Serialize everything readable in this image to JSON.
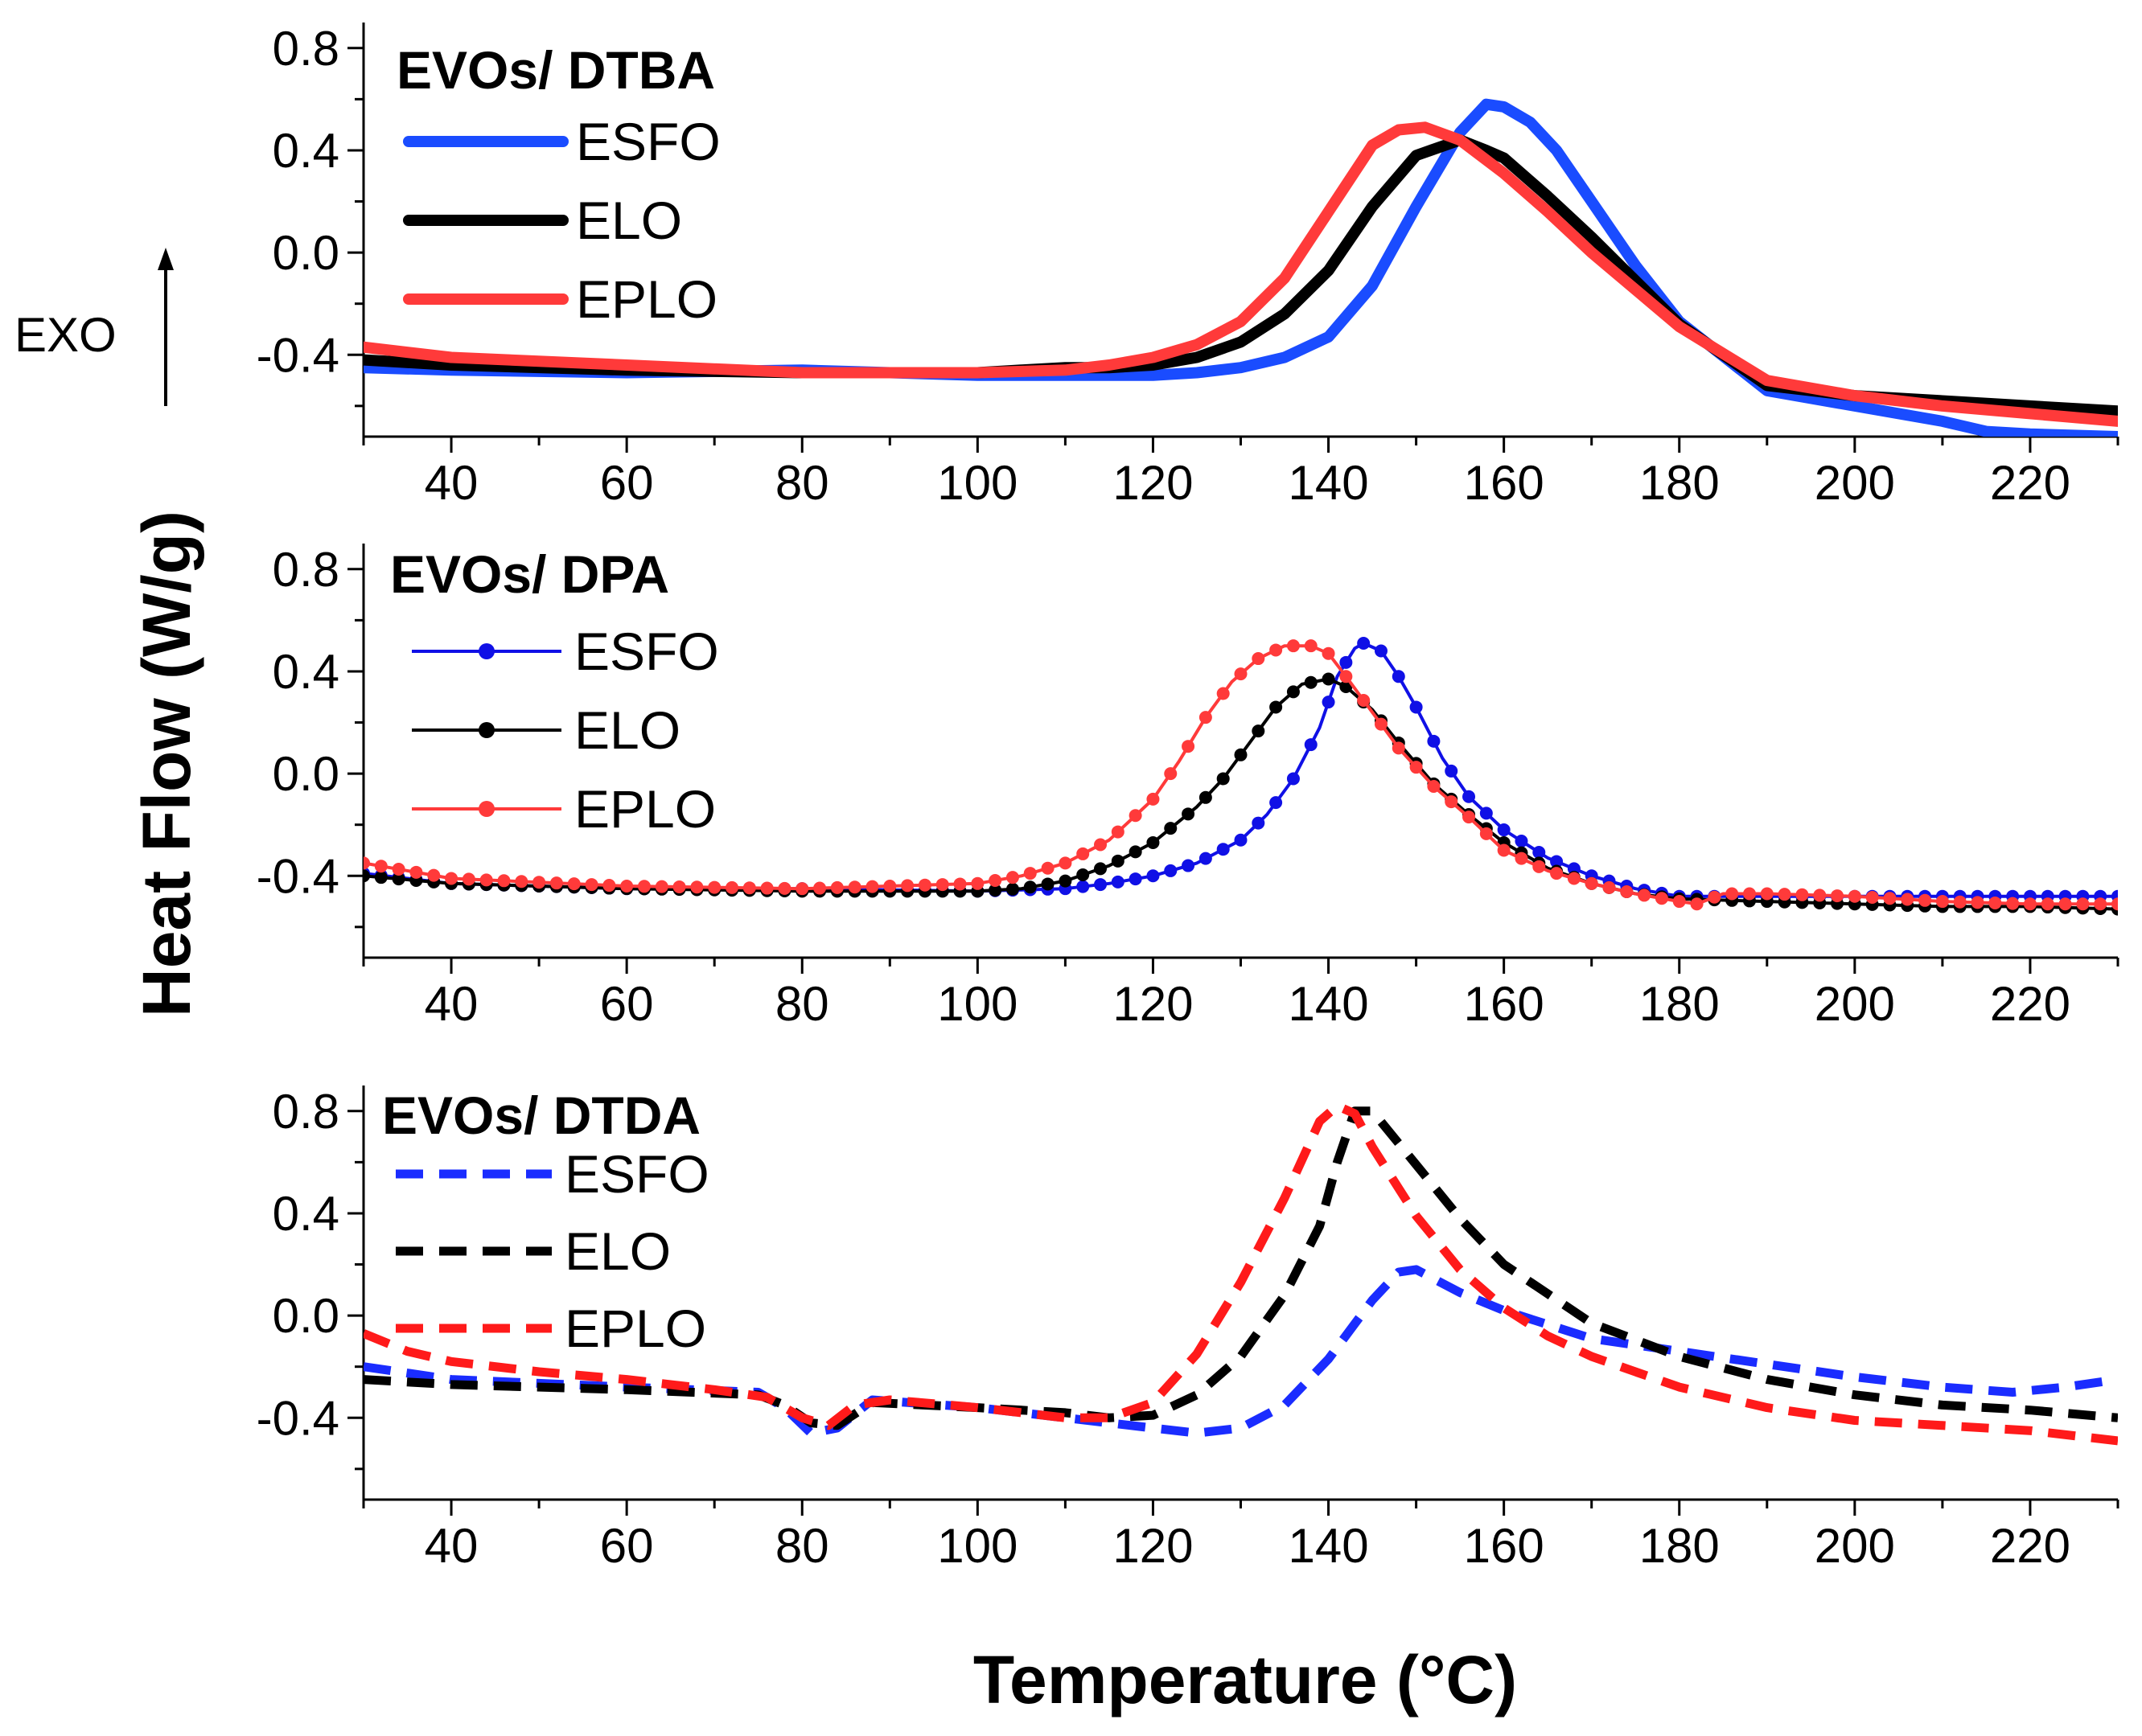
{
  "figure": {
    "ylabel": "Heat Flow (W/g)",
    "xlabel": "Temperature (°C)",
    "exo_label": "EXO"
  },
  "chart_data": [
    {
      "type": "line",
      "title": "EVOs/ DTBA",
      "line_style": "solid",
      "xlabel": "Temperature (°C)",
      "ylabel": "Heat Flow (W/g)",
      "xlim": [
        30,
        230
      ],
      "ylim": [
        -0.72,
        0.9
      ],
      "xticks": [
        40,
        60,
        80,
        100,
        120,
        140,
        160,
        180,
        200,
        220
      ],
      "yticks": [
        -0.4,
        0.0,
        0.4,
        0.8
      ],
      "xtick_labels": [
        "40",
        "60",
        "80",
        "100",
        "120",
        "140",
        "160",
        "180",
        "200",
        "220"
      ],
      "ytick_labels": [
        "-0.4",
        "0.0",
        "0.4",
        "0.8"
      ],
      "legend_position": "top-left",
      "series": [
        {
          "name": "ESFO",
          "color": "#1a4cff",
          "x": [
            30,
            40,
            60,
            80,
            90,
            100,
            110,
            120,
            125,
            130,
            135,
            140,
            145,
            150,
            155,
            158,
            160,
            163,
            166,
            170,
            175,
            180,
            190,
            200,
            210,
            215,
            220,
            230
          ],
          "y": [
            -0.45,
            -0.46,
            -0.47,
            -0.46,
            -0.47,
            -0.48,
            -0.48,
            -0.48,
            -0.47,
            -0.45,
            -0.41,
            -0.33,
            -0.13,
            0.18,
            0.47,
            0.58,
            0.57,
            0.51,
            0.4,
            0.2,
            -0.05,
            -0.27,
            -0.54,
            -0.6,
            -0.66,
            -0.7,
            -0.71,
            -0.72
          ]
        },
        {
          "name": "ELO",
          "color": "#000000",
          "x": [
            30,
            40,
            60,
            80,
            90,
            100,
            105,
            110,
            115,
            120,
            125,
            130,
            135,
            140,
            145,
            150,
            155,
            158,
            160,
            165,
            170,
            180,
            190,
            200,
            210,
            220,
            230
          ],
          "y": [
            -0.42,
            -0.44,
            -0.46,
            -0.47,
            -0.47,
            -0.47,
            -0.46,
            -0.45,
            -0.45,
            -0.44,
            -0.41,
            -0.35,
            -0.24,
            -0.07,
            0.18,
            0.38,
            0.44,
            0.4,
            0.37,
            0.22,
            0.06,
            -0.28,
            -0.52,
            -0.56,
            -0.58,
            -0.6,
            -0.62
          ]
        },
        {
          "name": "EPLO",
          "color": "#ff3a3a",
          "x": [
            30,
            40,
            60,
            80,
            90,
            100,
            110,
            115,
            120,
            125,
            130,
            135,
            140,
            145,
            148,
            151,
            155,
            160,
            165,
            170,
            180,
            190,
            200,
            210,
            220,
            230
          ],
          "y": [
            -0.37,
            -0.41,
            -0.44,
            -0.47,
            -0.47,
            -0.47,
            -0.46,
            -0.44,
            -0.41,
            -0.36,
            -0.27,
            -0.1,
            0.16,
            0.42,
            0.48,
            0.49,
            0.44,
            0.31,
            0.16,
            0.0,
            -0.29,
            -0.5,
            -0.56,
            -0.6,
            -0.63,
            -0.66
          ]
        }
      ]
    },
    {
      "type": "line",
      "title": "EVOs/ DPA",
      "line_style": "solid-with-dots",
      "xlabel": "Temperature (°C)",
      "ylabel": "Heat Flow (W/g)",
      "xlim": [
        30,
        230
      ],
      "ylim": [
        -0.72,
        0.9
      ],
      "xticks": [
        40,
        60,
        80,
        100,
        120,
        140,
        160,
        180,
        200,
        220
      ],
      "yticks": [
        -0.4,
        0.0,
        0.4,
        0.8
      ],
      "xtick_labels": [
        "40",
        "60",
        "80",
        "100",
        "120",
        "140",
        "160",
        "180",
        "200",
        "220"
      ],
      "ytick_labels": [
        "-0.4",
        "0.0",
        "0.4",
        "0.8"
      ],
      "legend_position": "top-left",
      "series": [
        {
          "name": "ESFO",
          "color": "#1010e6",
          "x": [
            30,
            40,
            60,
            80,
            100,
            110,
            115,
            120,
            125,
            130,
            133,
            136,
            139,
            141,
            143,
            144,
            146,
            148,
            150,
            153,
            156,
            160,
            165,
            170,
            175,
            180,
            190,
            200,
            210,
            220,
            230
          ],
          "y": [
            -0.39,
            -0.43,
            -0.45,
            -0.45,
            -0.46,
            -0.45,
            -0.43,
            -0.4,
            -0.35,
            -0.26,
            -0.16,
            -0.02,
            0.18,
            0.38,
            0.49,
            0.51,
            0.48,
            0.38,
            0.26,
            0.06,
            -0.09,
            -0.22,
            -0.33,
            -0.4,
            -0.45,
            -0.48,
            -0.48,
            -0.48,
            -0.48,
            -0.48,
            -0.48
          ]
        },
        {
          "name": "ELO",
          "color": "#000000",
          "x": [
            30,
            40,
            60,
            80,
            100,
            105,
            110,
            115,
            120,
            125,
            128,
            131,
            134,
            137,
            140,
            142,
            145,
            148,
            152,
            156,
            160,
            165,
            170,
            175,
            180,
            190,
            200,
            210,
            220,
            230
          ],
          "y": [
            -0.4,
            -0.43,
            -0.45,
            -0.46,
            -0.46,
            -0.45,
            -0.42,
            -0.36,
            -0.27,
            -0.13,
            -0.02,
            0.12,
            0.26,
            0.35,
            0.37,
            0.34,
            0.25,
            0.12,
            -0.04,
            -0.16,
            -0.27,
            -0.37,
            -0.43,
            -0.47,
            -0.49,
            -0.5,
            -0.51,
            -0.52,
            -0.52,
            -0.53
          ]
        },
        {
          "name": "EPLO",
          "color": "#ff3a3a",
          "x": [
            30,
            40,
            60,
            80,
            100,
            105,
            110,
            115,
            120,
            123,
            126,
            129,
            132,
            135,
            138,
            140,
            142,
            145,
            148,
            152,
            156,
            160,
            165,
            170,
            175,
            180,
            182,
            185,
            190,
            200,
            210,
            220,
            230
          ],
          "y": [
            -0.35,
            -0.41,
            -0.44,
            -0.45,
            -0.43,
            -0.4,
            -0.35,
            -0.26,
            -0.1,
            0.05,
            0.22,
            0.36,
            0.45,
            0.5,
            0.5,
            0.47,
            0.38,
            0.24,
            0.1,
            -0.05,
            -0.17,
            -0.3,
            -0.38,
            -0.43,
            -0.47,
            -0.5,
            -0.51,
            -0.47,
            -0.47,
            -0.48,
            -0.5,
            -0.51,
            -0.51
          ]
        }
      ]
    },
    {
      "type": "line",
      "title": "EVOs/ DTDA",
      "line_style": "dashed",
      "xlabel": "Temperature (°C)",
      "ylabel": "Heat Flow (W/g)",
      "xlim": [
        30,
        230
      ],
      "ylim": [
        -0.72,
        0.9
      ],
      "xticks": [
        40,
        60,
        80,
        100,
        120,
        140,
        160,
        180,
        200,
        220
      ],
      "yticks": [
        -0.4,
        0.0,
        0.4,
        0.8
      ],
      "xtick_labels": [
        "40",
        "60",
        "80",
        "100",
        "120",
        "140",
        "160",
        "180",
        "200",
        "220"
      ],
      "ytick_labels": [
        "-0.4",
        "0.0",
        "0.4",
        "0.8"
      ],
      "legend_position": "top-left",
      "series": [
        {
          "name": "ESFO",
          "color": "#1a2cff",
          "x": [
            30,
            40,
            60,
            75,
            78,
            81,
            84,
            88,
            100,
            110,
            120,
            125,
            130,
            135,
            140,
            145,
            148,
            150,
            155,
            160,
            170,
            180,
            190,
            200,
            210,
            218,
            224,
            230
          ],
          "y": [
            -0.2,
            -0.25,
            -0.28,
            -0.3,
            -0.36,
            -0.46,
            -0.44,
            -0.33,
            -0.36,
            -0.4,
            -0.44,
            -0.46,
            -0.44,
            -0.35,
            -0.17,
            0.06,
            0.17,
            0.18,
            0.09,
            0.02,
            -0.09,
            -0.14,
            -0.19,
            -0.24,
            -0.28,
            -0.3,
            -0.28,
            -0.25
          ]
        },
        {
          "name": "ELO",
          "color": "#000000",
          "x": [
            30,
            40,
            60,
            75,
            78,
            81,
            84,
            88,
            100,
            110,
            115,
            120,
            125,
            130,
            135,
            139,
            141,
            143,
            145,
            150,
            155,
            160,
            170,
            180,
            190,
            200,
            210,
            220,
            230
          ],
          "y": [
            -0.25,
            -0.27,
            -0.29,
            -0.31,
            -0.35,
            -0.42,
            -0.43,
            -0.34,
            -0.36,
            -0.38,
            -0.4,
            -0.39,
            -0.31,
            -0.16,
            0.08,
            0.35,
            0.6,
            0.8,
            0.8,
            0.59,
            0.38,
            0.2,
            -0.03,
            -0.16,
            -0.25,
            -0.31,
            -0.35,
            -0.37,
            -0.4
          ]
        },
        {
          "name": "EPLO",
          "color": "#ff1a1a",
          "x": [
            30,
            35,
            40,
            50,
            60,
            70,
            76,
            80,
            83,
            86,
            90,
            100,
            110,
            115,
            120,
            125,
            130,
            135,
            139,
            141,
            143,
            145,
            150,
            155,
            160,
            165,
            170,
            180,
            190,
            200,
            210,
            220,
            230
          ],
          "y": [
            -0.07,
            -0.14,
            -0.18,
            -0.22,
            -0.25,
            -0.29,
            -0.32,
            -0.4,
            -0.43,
            -0.35,
            -0.33,
            -0.36,
            -0.4,
            -0.4,
            -0.34,
            -0.15,
            0.13,
            0.46,
            0.76,
            0.82,
            0.79,
            0.66,
            0.39,
            0.18,
            0.03,
            -0.08,
            -0.16,
            -0.28,
            -0.36,
            -0.41,
            -0.43,
            -0.45,
            -0.49
          ]
        }
      ]
    }
  ]
}
